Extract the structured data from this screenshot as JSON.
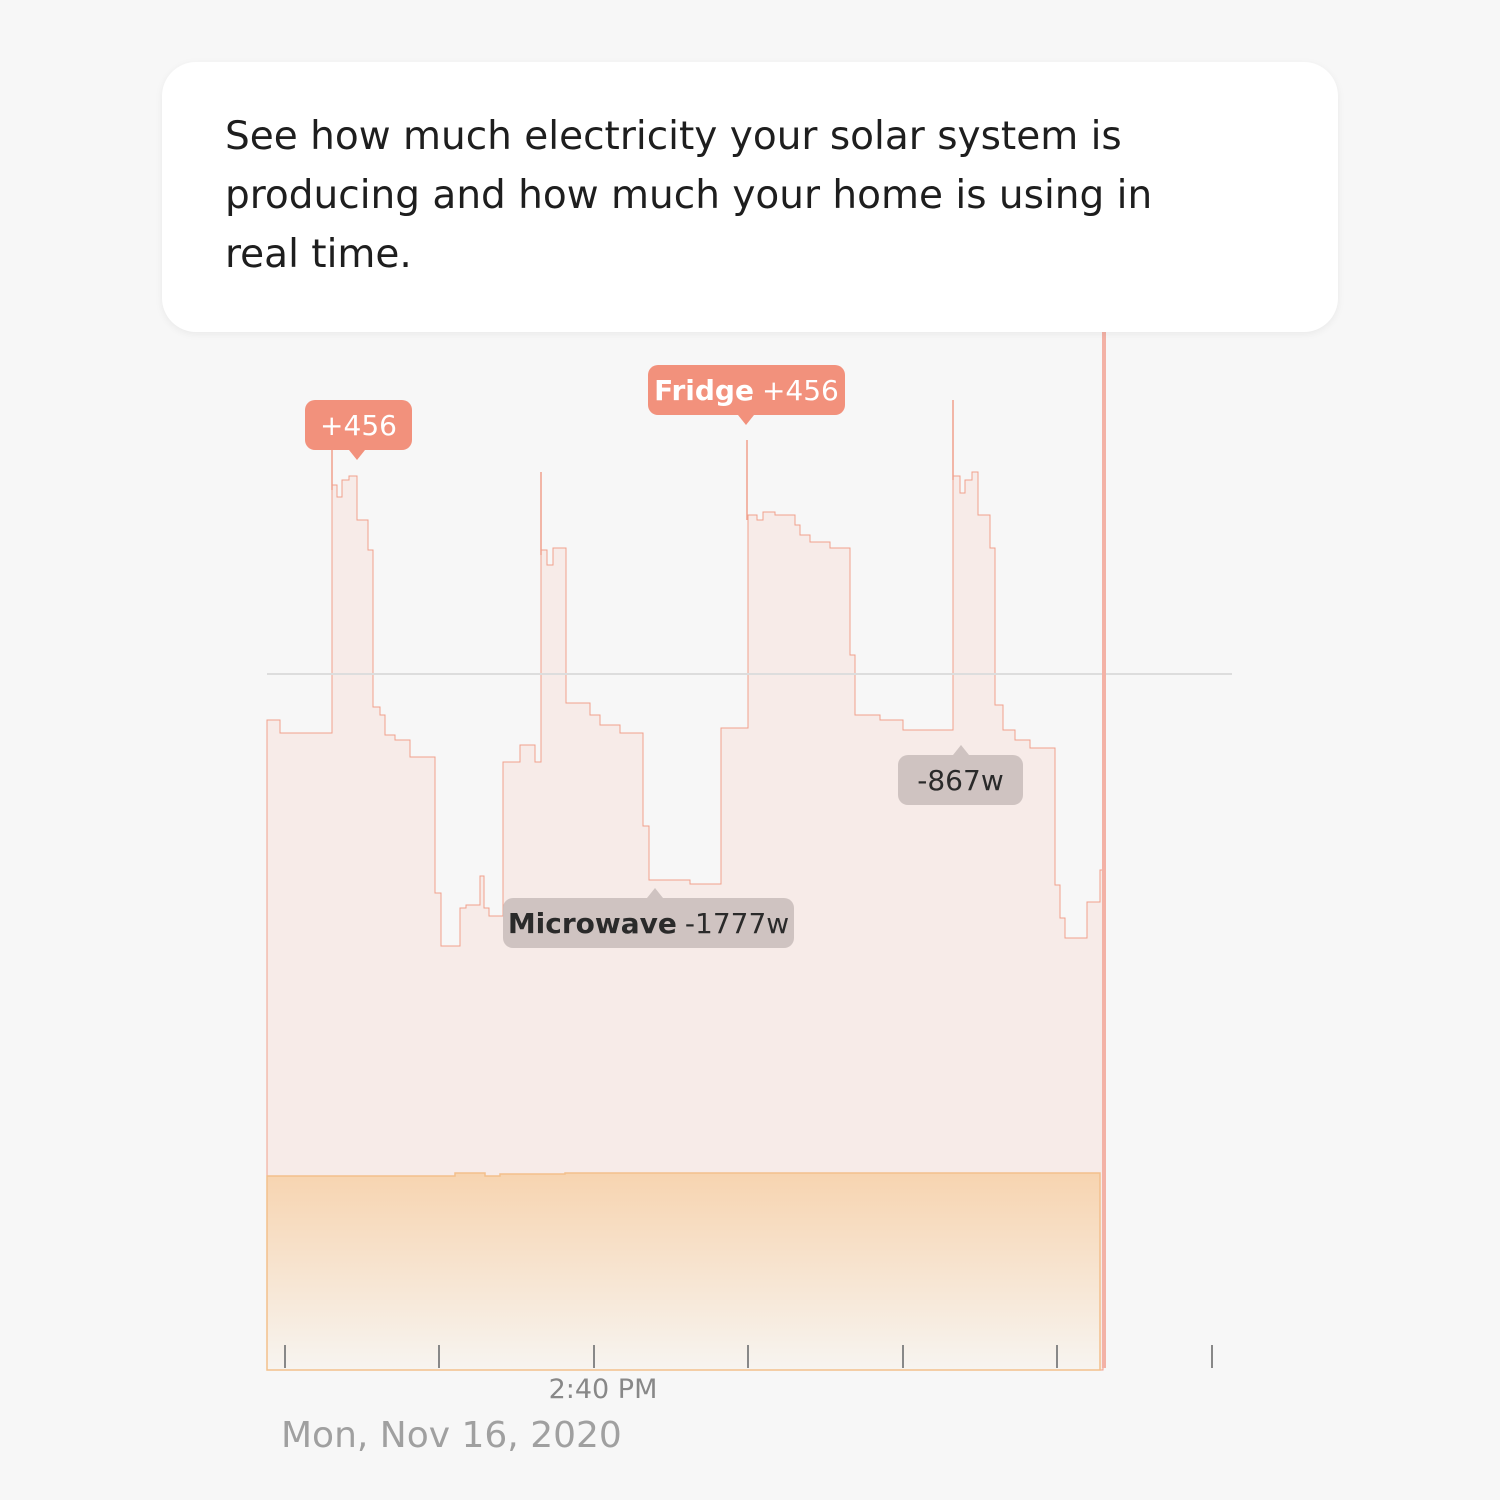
{
  "caption": {
    "lines": [
      "See how much electricity your solar system is",
      "producing and how much your home is using in",
      "real time."
    ]
  },
  "annotations": [
    {
      "value": "+456"
    },
    {
      "label": "Fridge",
      "value": "+456"
    },
    {
      "label": "Microwave",
      "value": "-1777w"
    },
    {
      "value": "-867w"
    }
  ],
  "time_label": "2:40 PM",
  "date_label": "Mon, Nov 16, 2020"
}
